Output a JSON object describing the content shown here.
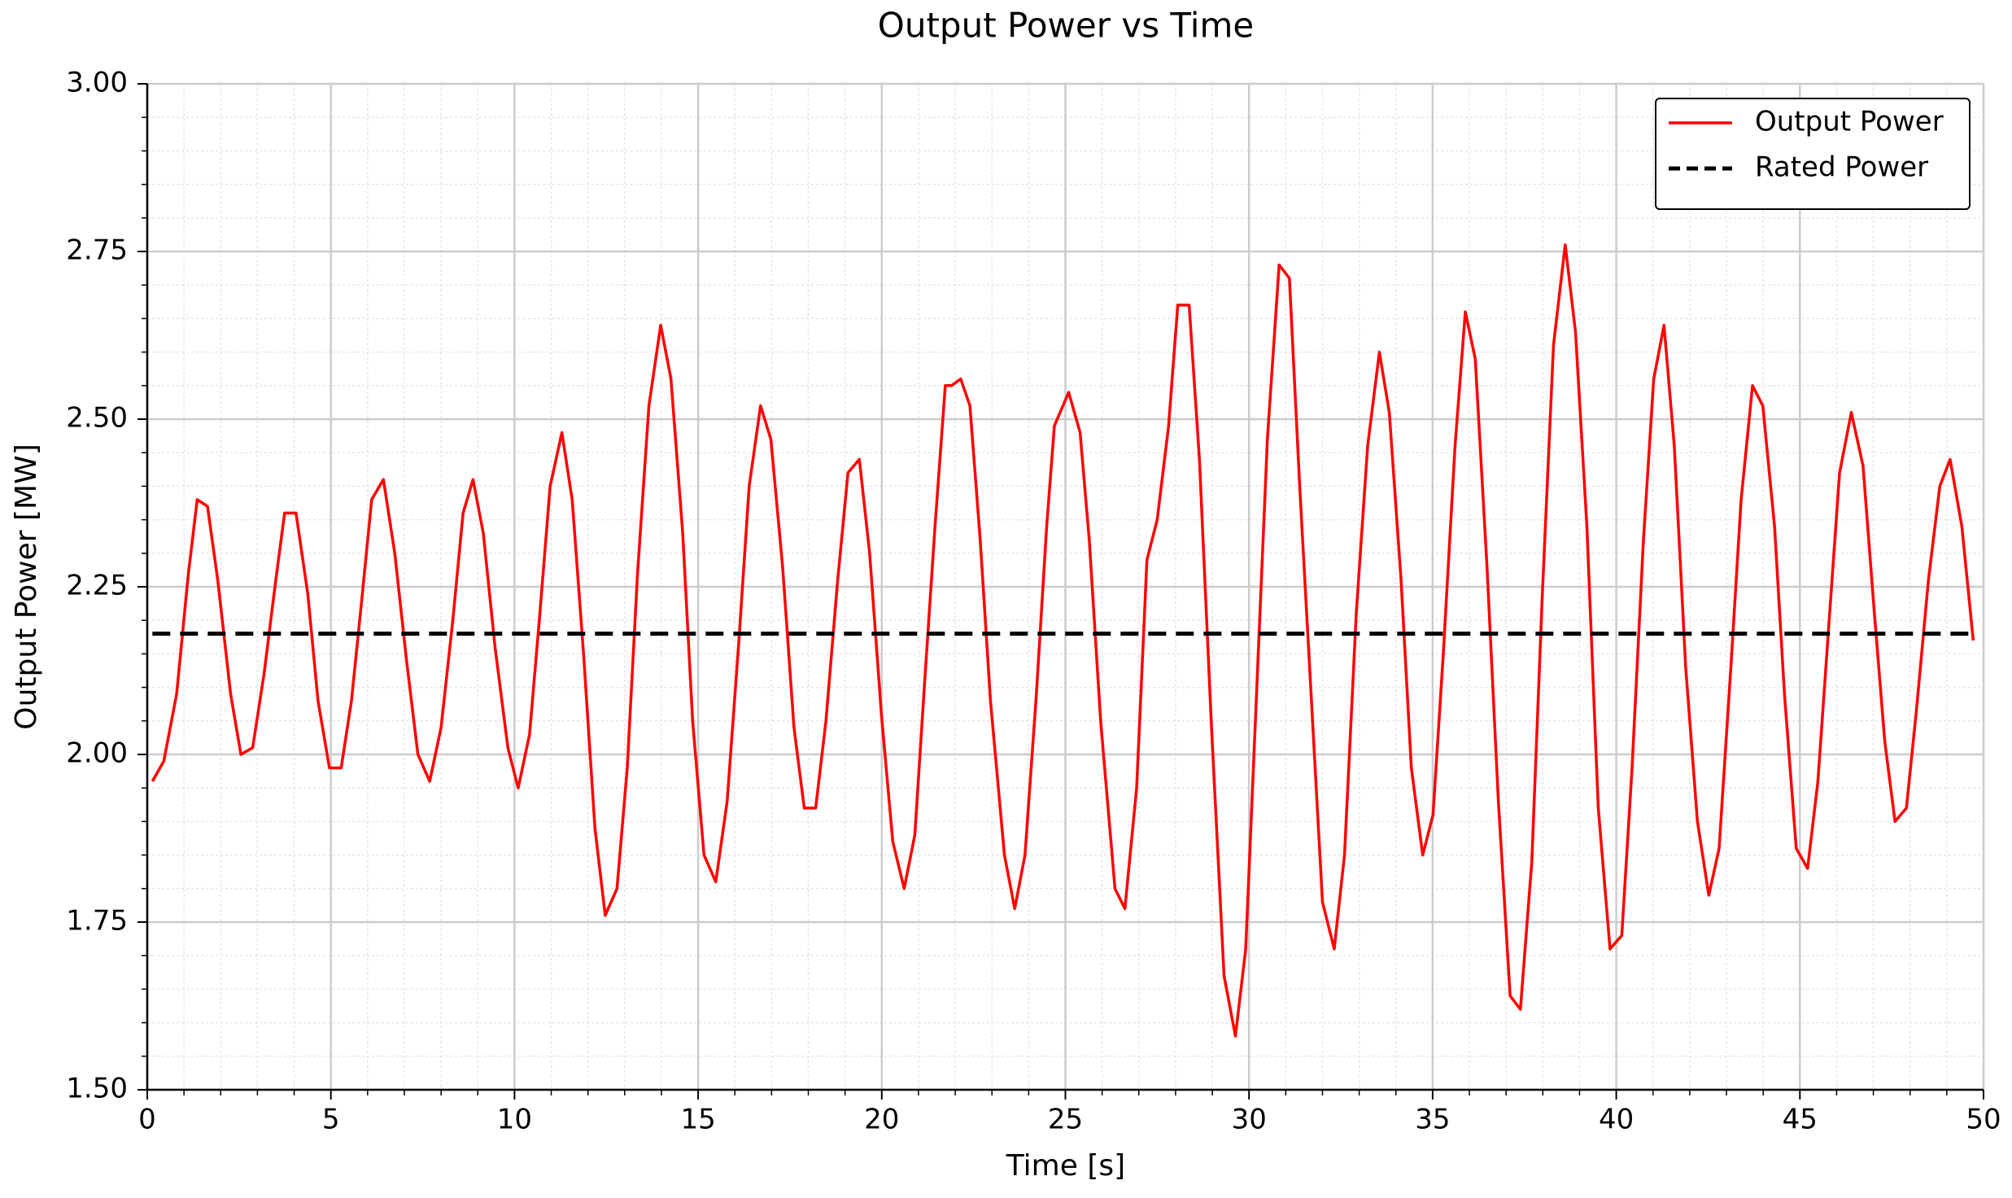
{
  "chart_data": {
    "type": "line",
    "title": "Output Power vs Time",
    "xlabel": "Time [s]",
    "ylabel": "Output Power [MW]",
    "xlim": [
      0,
      50
    ],
    "ylim": [
      1.5,
      3.0
    ],
    "xticks": [
      0,
      5,
      10,
      15,
      20,
      25,
      30,
      35,
      40,
      45,
      50
    ],
    "yticks": [
      {
        "value": 1.5,
        "label": "1.50"
      },
      {
        "value": 1.75,
        "label": "1.75"
      },
      {
        "value": 2.0,
        "label": "2.00"
      },
      {
        "value": 2.25,
        "label": "2.25"
      },
      {
        "value": 2.5,
        "label": "2.50"
      },
      {
        "value": 2.75,
        "label": "2.75"
      },
      {
        "value": 3.0,
        "label": "3.00"
      }
    ],
    "grid": true,
    "legend": "upper right",
    "series": [
      {
        "name": "Output Power",
        "color": "#ff0000",
        "dash": false,
        "x": [
          0.14,
          0.45,
          0.8,
          1.12,
          1.36,
          1.64,
          1.92,
          2.27,
          2.55,
          2.87,
          3.18,
          3.5,
          3.74,
          4.05,
          4.37,
          4.65,
          4.96,
          5.28,
          5.56,
          5.84,
          6.11,
          6.43,
          6.74,
          7.06,
          7.37,
          7.69,
          8.0,
          8.32,
          8.6,
          8.87,
          9.15,
          9.47,
          9.82,
          10.1,
          10.41,
          10.69,
          10.97,
          11.29,
          11.57,
          11.88,
          12.19,
          12.47,
          12.79,
          13.07,
          13.35,
          13.66,
          13.98,
          14.26,
          14.58,
          14.85,
          15.16,
          15.48,
          15.79,
          16.11,
          16.39,
          16.7,
          16.98,
          17.3,
          17.61,
          17.89,
          18.2,
          18.48,
          18.8,
          19.08,
          19.39,
          19.67,
          19.99,
          20.3,
          20.61,
          20.9,
          21.17,
          21.45,
          21.73,
          21.9,
          22.15,
          22.4,
          22.68,
          22.96,
          23.34,
          23.62,
          23.9,
          24.21,
          24.49,
          24.7,
          25.09,
          25.4,
          25.65,
          25.96,
          26.35,
          26.62,
          26.94,
          27.22,
          27.5,
          27.81,
          28.06,
          28.37,
          28.65,
          28.97,
          29.32,
          29.63,
          29.91,
          30.22,
          30.5,
          30.82,
          31.1,
          31.38,
          31.69,
          32.0,
          32.32,
          32.6,
          32.92,
          33.23,
          33.55,
          33.82,
          34.14,
          34.42,
          34.73,
          35.01,
          35.29,
          35.61,
          35.89,
          36.16,
          36.48,
          36.79,
          37.11,
          37.39,
          37.7,
          37.98,
          38.29,
          38.61,
          38.89,
          39.2,
          39.51,
          39.83,
          40.15,
          40.43,
          40.74,
          41.02,
          41.3,
          41.58,
          41.89,
          42.21,
          42.52,
          42.8,
          43.12,
          43.4,
          43.71,
          43.99,
          44.31,
          44.58,
          44.9,
          45.21,
          45.49,
          45.81,
          46.08,
          46.4,
          46.72,
          47.0,
          47.31,
          47.59,
          47.9,
          48.18,
          48.5,
          48.81,
          49.09,
          49.41,
          49.72
        ],
        "values": [
          1.96,
          1.99,
          2.09,
          2.27,
          2.38,
          2.37,
          2.26,
          2.09,
          2.0,
          2.01,
          2.12,
          2.26,
          2.36,
          2.36,
          2.24,
          2.08,
          1.98,
          1.98,
          2.08,
          2.23,
          2.38,
          2.41,
          2.3,
          2.14,
          2.0,
          1.96,
          2.04,
          2.2,
          2.36,
          2.41,
          2.33,
          2.16,
          2.01,
          1.95,
          2.03,
          2.21,
          2.4,
          2.48,
          2.38,
          2.15,
          1.89,
          1.76,
          1.8,
          1.98,
          2.27,
          2.52,
          2.64,
          2.56,
          2.33,
          2.05,
          1.85,
          1.81,
          1.93,
          2.17,
          2.4,
          2.52,
          2.47,
          2.28,
          2.04,
          1.92,
          1.92,
          2.05,
          2.26,
          2.42,
          2.44,
          2.3,
          2.06,
          1.87,
          1.8,
          1.88,
          2.11,
          2.34,
          2.55,
          2.55,
          2.56,
          2.52,
          2.32,
          2.08,
          1.85,
          1.77,
          1.85,
          2.09,
          2.34,
          2.49,
          2.54,
          2.48,
          2.32,
          2.05,
          1.8,
          1.77,
          1.95,
          2.29,
          2.35,
          2.49,
          2.67,
          2.67,
          2.44,
          2.05,
          1.67,
          1.58,
          1.71,
          2.11,
          2.47,
          2.73,
          2.71,
          2.4,
          2.09,
          1.78,
          1.71,
          1.85,
          2.21,
          2.46,
          2.6,
          2.51,
          2.26,
          1.98,
          1.85,
          1.91,
          2.15,
          2.46,
          2.66,
          2.59,
          2.28,
          1.93,
          1.64,
          1.62,
          1.84,
          2.23,
          2.61,
          2.76,
          2.63,
          2.34,
          1.92,
          1.71,
          1.73,
          1.98,
          2.32,
          2.56,
          2.64,
          2.46,
          2.13,
          1.9,
          1.79,
          1.86,
          2.13,
          2.38,
          2.55,
          2.52,
          2.34,
          2.09,
          1.86,
          1.83,
          1.96,
          2.21,
          2.42,
          2.51,
          2.43,
          2.23,
          2.02,
          1.9,
          1.92,
          2.07,
          2.26,
          2.4,
          2.44,
          2.34,
          2.17
        ]
      },
      {
        "name": "Rated Power",
        "color": "#000000",
        "dash": true,
        "x": [
          0.14,
          49.72
        ],
        "values": [
          2.18,
          2.18
        ]
      }
    ]
  }
}
